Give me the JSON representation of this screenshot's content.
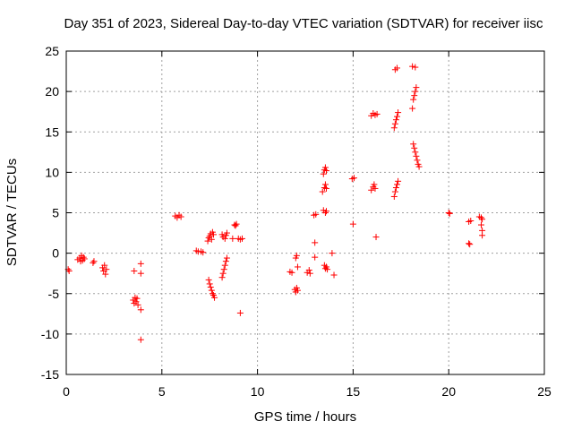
{
  "chart_data": {
    "type": "scatter",
    "title": "Day 351 of 2023, Sidereal Day-to-day VTEC variation (SDTVAR) for receiver iisc",
    "xlabel": "GPS time / hours",
    "ylabel": "SDTVAR / TECUs",
    "xlim": [
      0,
      25
    ],
    "ylim": [
      -15,
      25
    ],
    "xticks": [
      0,
      5,
      10,
      15,
      20,
      25
    ],
    "yticks": [
      -15,
      -10,
      -5,
      0,
      5,
      10,
      15,
      20,
      25
    ],
    "grid": true,
    "marker": "+",
    "color": "#ff0000",
    "series": [
      {
        "name": "SDTVAR",
        "points": [
          [
            0.1,
            -2.0
          ],
          [
            0.15,
            -2.2
          ],
          [
            0.6,
            -0.8
          ],
          [
            0.7,
            -0.6
          ],
          [
            0.75,
            -1.0
          ],
          [
            0.8,
            -0.3
          ],
          [
            0.85,
            -0.9
          ],
          [
            0.9,
            -0.5
          ],
          [
            0.95,
            -0.7
          ],
          [
            1.4,
            -1.2
          ],
          [
            1.45,
            -1.0
          ],
          [
            1.9,
            -1.8
          ],
          [
            1.95,
            -2.2
          ],
          [
            2.0,
            -1.5
          ],
          [
            2.05,
            -2.6
          ],
          [
            2.1,
            -2.0
          ],
          [
            3.5,
            -5.8
          ],
          [
            3.55,
            -6.2
          ],
          [
            3.55,
            -2.2
          ],
          [
            3.6,
            -5.5
          ],
          [
            3.65,
            -6.0
          ],
          [
            3.7,
            -5.6
          ],
          [
            3.75,
            -6.4
          ],
          [
            3.9,
            -1.3
          ],
          [
            3.9,
            -2.5
          ],
          [
            3.9,
            -7.0
          ],
          [
            3.9,
            -10.7
          ],
          [
            5.7,
            4.6
          ],
          [
            5.8,
            4.4
          ],
          [
            5.9,
            4.7
          ],
          [
            6.0,
            4.5
          ],
          [
            6.8,
            0.3
          ],
          [
            6.9,
            0.2
          ],
          [
            7.05,
            0.2
          ],
          [
            7.15,
            0.1
          ],
          [
            7.4,
            1.5
          ],
          [
            7.45,
            1.9
          ],
          [
            7.5,
            2.1
          ],
          [
            7.55,
            2.4
          ],
          [
            7.6,
            1.7
          ],
          [
            7.65,
            2.6
          ],
          [
            7.7,
            2.3
          ],
          [
            7.45,
            -3.3
          ],
          [
            7.5,
            -3.8
          ],
          [
            7.55,
            -4.2
          ],
          [
            7.6,
            -4.6
          ],
          [
            7.65,
            -5.0
          ],
          [
            7.7,
            -5.2
          ],
          [
            7.75,
            -5.5
          ],
          [
            8.15,
            2.3
          ],
          [
            8.2,
            2.0
          ],
          [
            8.3,
            1.8
          ],
          [
            8.35,
            2.2
          ],
          [
            8.4,
            2.5
          ],
          [
            8.15,
            -3.0
          ],
          [
            8.2,
            -2.5
          ],
          [
            8.25,
            -2.0
          ],
          [
            8.3,
            -1.5
          ],
          [
            8.35,
            -1.0
          ],
          [
            8.4,
            -0.6
          ],
          [
            8.7,
            1.8
          ],
          [
            8.8,
            3.5
          ],
          [
            8.85,
            3.4
          ],
          [
            8.9,
            3.6
          ],
          [
            9.0,
            1.8
          ],
          [
            9.1,
            1.7
          ],
          [
            9.2,
            1.8
          ],
          [
            9.1,
            -7.4
          ],
          [
            11.7,
            -2.3
          ],
          [
            11.8,
            -2.4
          ],
          [
            11.95,
            -4.5
          ],
          [
            12.0,
            -4.8
          ],
          [
            12.05,
            -4.3
          ],
          [
            12.1,
            -4.6
          ],
          [
            12.0,
            -0.6
          ],
          [
            12.05,
            -0.3
          ],
          [
            12.1,
            -1.7
          ],
          [
            12.6,
            -2.4
          ],
          [
            12.7,
            -2.1
          ],
          [
            12.75,
            -2.5
          ],
          [
            13.0,
            -0.5
          ],
          [
            13.0,
            1.3
          ],
          [
            12.95,
            4.7
          ],
          [
            13.05,
            4.8
          ],
          [
            13.5,
            -1.5
          ],
          [
            13.55,
            -1.9
          ],
          [
            13.6,
            -1.7
          ],
          [
            13.65,
            -2.0
          ],
          [
            13.45,
            5.3
          ],
          [
            13.55,
            5.0
          ],
          [
            13.6,
            5.2
          ],
          [
            13.4,
            7.6
          ],
          [
            13.5,
            8.1
          ],
          [
            13.55,
            8.5
          ],
          [
            13.6,
            8.0
          ],
          [
            13.45,
            9.8
          ],
          [
            13.5,
            10.3
          ],
          [
            13.55,
            10.6
          ],
          [
            13.6,
            10.2
          ],
          [
            13.9,
            0.0
          ],
          [
            14.0,
            -2.7
          ],
          [
            14.95,
            9.2
          ],
          [
            15.05,
            9.3
          ],
          [
            15.0,
            3.6
          ],
          [
            15.95,
            7.8
          ],
          [
            16.05,
            8.2
          ],
          [
            16.1,
            8.5
          ],
          [
            16.15,
            8.0
          ],
          [
            15.95,
            17.0
          ],
          [
            16.05,
            17.3
          ],
          [
            16.15,
            17.1
          ],
          [
            16.25,
            17.2
          ],
          [
            16.2,
            2.0
          ],
          [
            17.15,
            7.0
          ],
          [
            17.2,
            7.6
          ],
          [
            17.25,
            8.1
          ],
          [
            17.3,
            8.5
          ],
          [
            17.35,
            8.9
          ],
          [
            17.15,
            15.5
          ],
          [
            17.2,
            16.0
          ],
          [
            17.25,
            16.5
          ],
          [
            17.3,
            16.9
          ],
          [
            17.35,
            17.4
          ],
          [
            17.2,
            22.7
          ],
          [
            17.3,
            22.9
          ],
          [
            18.1,
            17.9
          ],
          [
            18.15,
            19.0
          ],
          [
            18.2,
            19.5
          ],
          [
            18.25,
            20.0
          ],
          [
            18.3,
            20.5
          ],
          [
            18.1,
            23.1
          ],
          [
            18.25,
            23.0
          ],
          [
            18.15,
            13.5
          ],
          [
            18.2,
            13.0
          ],
          [
            18.25,
            12.5
          ],
          [
            18.3,
            12.0
          ],
          [
            18.35,
            11.5
          ],
          [
            18.4,
            11.0
          ],
          [
            18.45,
            10.7
          ],
          [
            20.0,
            5.0
          ],
          [
            20.05,
            4.9
          ],
          [
            21.05,
            3.9
          ],
          [
            21.15,
            4.0
          ],
          [
            21.05,
            1.2
          ],
          [
            21.1,
            1.1
          ],
          [
            21.6,
            4.5
          ],
          [
            21.7,
            4.4
          ],
          [
            21.75,
            4.2
          ],
          [
            21.7,
            3.5
          ],
          [
            21.75,
            2.8
          ],
          [
            21.75,
            2.2
          ]
        ]
      }
    ]
  }
}
